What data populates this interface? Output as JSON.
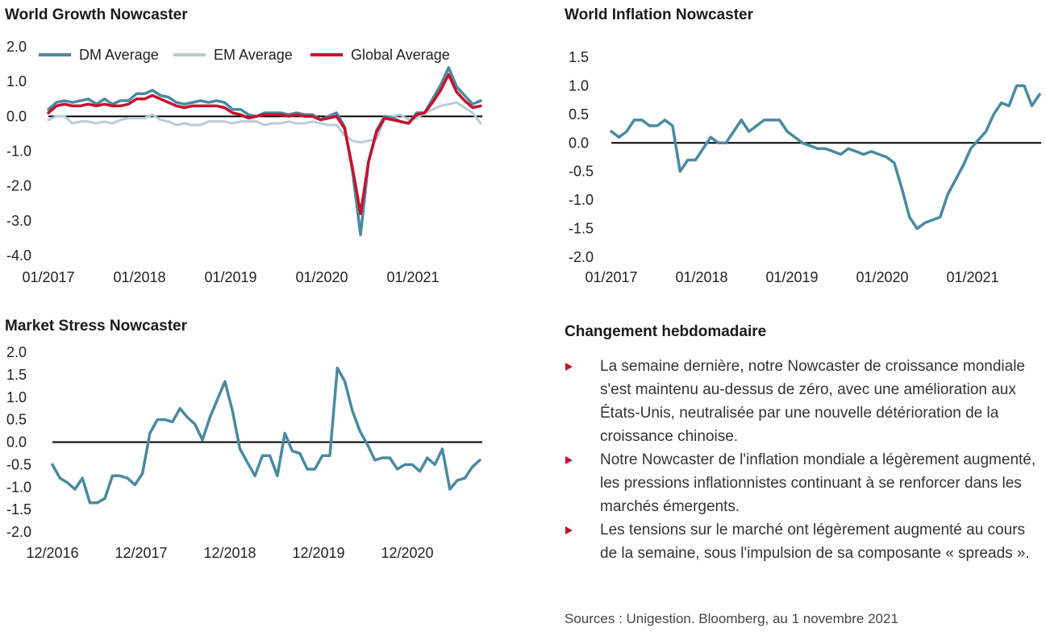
{
  "colors": {
    "dm": "#4a8aa0",
    "em": "#b8ccd6",
    "global": "#c8102e",
    "line": "#4a8aa0",
    "zero": "#000000",
    "bullet": "#c8102e"
  },
  "growth": {
    "title": "World Growth Nowcaster",
    "legend": [
      {
        "label": "DM Average",
        "color": "#4a8aa0"
      },
      {
        "label": "EM Average",
        "color": "#b8ccd6"
      },
      {
        "label": "Global Average",
        "color": "#c8102e"
      }
    ],
    "chart_data": {
      "type": "line",
      "title": "World Growth Nowcaster",
      "y_ticks": [
        "2.0",
        "1.0",
        "0.0",
        "-1.0",
        "-2.0",
        "-3.0",
        "-4.0"
      ],
      "x_ticks": [
        "01/2017",
        "01/2018",
        "01/2019",
        "01/2020",
        "01/2021"
      ],
      "ylim": [
        -4,
        2
      ],
      "series": [
        {
          "name": "DM Average",
          "values": [
            0.2,
            0.4,
            0.45,
            0.4,
            0.45,
            0.5,
            0.35,
            0.5,
            0.35,
            0.45,
            0.45,
            0.65,
            0.65,
            0.75,
            0.6,
            0.55,
            0.4,
            0.35,
            0.4,
            0.45,
            0.4,
            0.45,
            0.4,
            0.2,
            0.2,
            0.05,
            0.0,
            0.1,
            0.1,
            0.1,
            0.05,
            0.1,
            0.05,
            0.05,
            -0.1,
            0.0,
            0.1,
            -0.3,
            -1.6,
            -3.4,
            -1.3,
            -0.4,
            0.0,
            -0.05,
            -0.15,
            -0.2,
            0.1,
            0.1,
            0.5,
            0.9,
            1.4,
            0.85,
            0.6,
            0.35,
            0.45
          ]
        },
        {
          "name": "EM Average",
          "values": [
            -0.1,
            0.0,
            0.0,
            -0.2,
            -0.15,
            -0.15,
            -0.2,
            -0.15,
            -0.2,
            -0.1,
            -0.05,
            -0.05,
            -0.05,
            0.05,
            -0.1,
            -0.15,
            -0.25,
            -0.2,
            -0.25,
            -0.25,
            -0.15,
            -0.15,
            -0.15,
            -0.2,
            -0.15,
            -0.15,
            -0.15,
            -0.25,
            -0.2,
            -0.2,
            -0.15,
            -0.2,
            -0.2,
            -0.15,
            -0.2,
            -0.25,
            -0.25,
            -0.55,
            -0.7,
            -0.75,
            -0.7,
            -0.65,
            -0.05,
            0.0,
            0.05,
            -0.1,
            -0.05,
            0.1,
            0.2,
            0.3,
            0.35,
            0.4,
            0.25,
            0.1,
            -0.2
          ]
        },
        {
          "name": "Global Average",
          "values": [
            0.1,
            0.3,
            0.35,
            0.3,
            0.3,
            0.35,
            0.3,
            0.35,
            0.3,
            0.3,
            0.35,
            0.5,
            0.5,
            0.6,
            0.5,
            0.4,
            0.3,
            0.25,
            0.3,
            0.3,
            0.3,
            0.3,
            0.25,
            0.1,
            0.05,
            -0.05,
            0.0,
            0.05,
            0.05,
            0.05,
            0.0,
            0.05,
            0.0,
            0.0,
            -0.1,
            -0.05,
            0.0,
            -0.35,
            -1.5,
            -2.8,
            -1.3,
            -0.45,
            -0.05,
            -0.1,
            -0.15,
            -0.2,
            0.05,
            0.1,
            0.4,
            0.75,
            1.2,
            0.7,
            0.45,
            0.25,
            0.3
          ]
        }
      ]
    }
  },
  "inflation": {
    "title": "World Inflation Nowcaster",
    "chart_data": {
      "type": "line",
      "title": "World Inflation Nowcaster",
      "y_ticks": [
        "1.5",
        "1.0",
        "0.5",
        "0.0",
        "-0.5",
        "-1.0",
        "-1.5",
        "-2.0"
      ],
      "x_ticks": [
        "01/2017",
        "01/2018",
        "01/2019",
        "01/2020",
        "01/2021"
      ],
      "ylim": [
        -2,
        1.5
      ],
      "values": [
        0.2,
        0.1,
        0.2,
        0.4,
        0.4,
        0.3,
        0.3,
        0.4,
        0.3,
        -0.5,
        -0.3,
        -0.3,
        -0.1,
        0.1,
        0.0,
        0.0,
        0.2,
        0.4,
        0.2,
        0.3,
        0.4,
        0.4,
        0.4,
        0.2,
        0.1,
        0.0,
        -0.05,
        -0.1,
        -0.1,
        -0.15,
        -0.2,
        -0.1,
        -0.15,
        -0.2,
        -0.15,
        -0.2,
        -0.25,
        -0.35,
        -0.8,
        -1.3,
        -1.5,
        -1.4,
        -1.35,
        -1.3,
        -0.9,
        -0.65,
        -0.4,
        -0.1,
        0.05,
        0.2,
        0.5,
        0.7,
        0.65,
        1.0,
        1.0,
        0.65,
        0.85
      ]
    }
  },
  "stress": {
    "title": "Market Stress Nowcaster",
    "chart_data": {
      "type": "line",
      "title": "Market Stress Nowcaster",
      "y_ticks": [
        "2.0",
        "1.5",
        "1.0",
        "0.5",
        "0.0",
        "-0.5",
        "-1.0",
        "-1.5",
        "-2.0"
      ],
      "x_ticks": [
        "12/2016",
        "12/2017",
        "12/2018",
        "12/2019",
        "12/2020"
      ],
      "ylim": [
        -2,
        2
      ],
      "values": [
        -0.5,
        -0.8,
        -0.9,
        -1.05,
        -0.8,
        -1.35,
        -1.35,
        -1.25,
        -0.75,
        -0.75,
        -0.8,
        -0.95,
        -0.7,
        0.2,
        0.5,
        0.5,
        0.45,
        0.75,
        0.55,
        0.4,
        0.05,
        0.55,
        0.95,
        1.35,
        0.7,
        -0.15,
        -0.45,
        -0.75,
        -0.3,
        -0.3,
        -0.75,
        0.2,
        -0.2,
        -0.25,
        -0.6,
        -0.6,
        -0.3,
        -0.3,
        1.65,
        1.35,
        0.7,
        0.25,
        -0.05,
        -0.4,
        -0.35,
        -0.35,
        -0.6,
        -0.5,
        -0.5,
        -0.65,
        -0.35,
        -0.5,
        -0.15,
        -1.05,
        -0.85,
        -0.8,
        -0.55,
        -0.4
      ]
    }
  },
  "weekly": {
    "title": "Changement hebdomadaire",
    "bullets": [
      "La semaine dernière, notre Nowcaster de croissance mondiale s'est maintenu au-dessus de zéro, avec une amélioration aux États-Unis, neutralisée par une nouvelle détérioration de la croissance chinoise.",
      "Notre Nowcaster de l'inflation mondiale a légèrement augmenté, les pressions inflationnistes continuant à se renforcer dans les marchés émergents.",
      "Les tensions sur le marché ont légèrement augmenté au cours de la semaine, sous l'impulsion de sa composante « spreads »."
    ]
  },
  "source": "Sources : Unigestion. Bloomberg, au 1 novembre 2021"
}
